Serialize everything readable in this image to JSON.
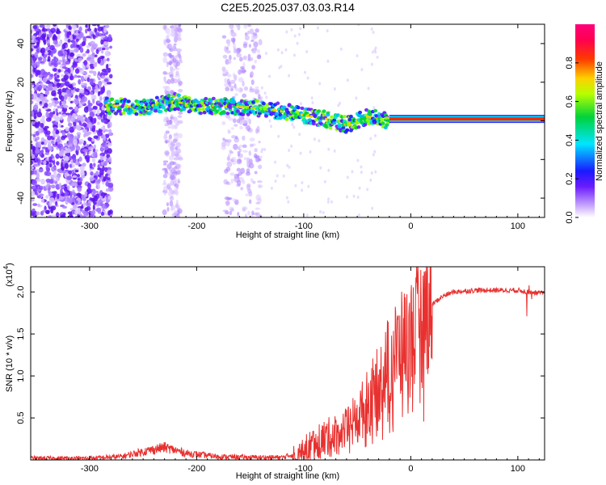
{
  "title": "C2E5.2025.037.03.03.R14",
  "chart_data": [
    {
      "type": "heatmap",
      "xlabel": "Height of straight line (km)",
      "ylabel": "Frequency (Hz)",
      "xlim": [
        -355,
        125
      ],
      "ylim": [
        -50,
        50
      ],
      "x_ticks": [
        -300,
        -200,
        -100,
        0,
        100
      ],
      "y_ticks": [
        -40,
        -20,
        0,
        20,
        40
      ],
      "colorbar": {
        "label": "Normalized spectral amplitude",
        "range": [
          0,
          1
        ],
        "ticks": [
          "0.0",
          "0.2",
          "0.4",
          "0.6",
          "0.8"
        ]
      },
      "ridge": {
        "x": [
          -285,
          -250,
          -220,
          -200,
          -150,
          -120,
          -100,
          -80,
          -60,
          -40,
          -20,
          0,
          40,
          80,
          100,
          125
        ],
        "y": [
          8,
          7,
          10,
          8,
          7,
          5,
          3,
          1,
          -2,
          2,
          0,
          1,
          1,
          2,
          1,
          1
        ]
      },
      "noise_bands": [
        {
          "x": [
            -355,
            -280
          ],
          "level": "strong"
        },
        {
          "x": [
            -230,
            -215
          ],
          "level": "weak"
        },
        {
          "x": [
            -175,
            -140
          ],
          "level": "weak"
        }
      ]
    },
    {
      "type": "line",
      "xlabel": "Height of straight line (km)",
      "ylabel": "SNR (10 * v/v)",
      "y_scale_label": "(x10",
      "y_scale_exp": "4",
      "xlim": [
        -355,
        125
      ],
      "ylim": [
        0,
        2.3
      ],
      "x_ticks": [
        -300,
        -200,
        -100,
        0,
        100
      ],
      "y_ticks": [
        "0.5",
        "1.0",
        "1.5",
        "2.0"
      ],
      "color": "#e8312f",
      "series": [
        {
          "x": [
            -355,
            -300,
            -270,
            -250,
            -230,
            -210,
            -180,
            -150,
            -120,
            -100,
            -90,
            -80,
            -70,
            -60,
            -50,
            -40,
            -30,
            -20,
            -10,
            0,
            10,
            20,
            30,
            40,
            60,
            80,
            100,
            110,
            125
          ],
          "y": [
            0.02,
            0.02,
            0.04,
            0.1,
            0.15,
            0.08,
            0.04,
            0.03,
            0.03,
            0.1,
            0.2,
            0.25,
            0.3,
            0.35,
            0.5,
            0.7,
            0.9,
            1.2,
            1.35,
            1.5,
            1.7,
            1.85,
            1.95,
            2.0,
            2.02,
            2.02,
            2.02,
            2.0,
            1.98
          ]
        }
      ]
    }
  ]
}
